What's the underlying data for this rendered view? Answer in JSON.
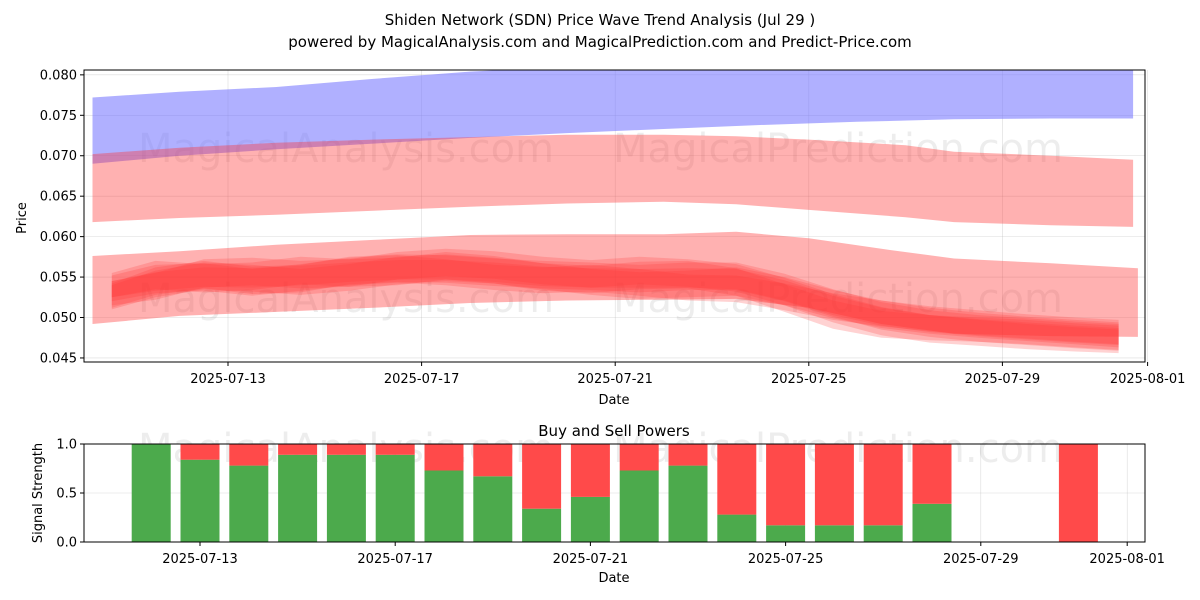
{
  "chart_data": [
    {
      "type": "area",
      "title": "Shiden Network (SDN) Price Wave Trend Analysis (Jul 29 )",
      "subtitle": "powered by MagicalAnalysis.com and MagicalPrediction.com and Predict-Price.com",
      "xlabel": "Date",
      "ylabel": "Price",
      "ylim": [
        0.0445,
        0.0806
      ],
      "y_ticks": [
        "0.045",
        "0.050",
        "0.055",
        "0.060",
        "0.065",
        "0.070",
        "0.075",
        "0.080"
      ],
      "x_ticks": [
        "2025-07-13",
        "2025-07-17",
        "2025-07-21",
        "2025-07-25",
        "2025-07-29",
        "2025-08-01"
      ],
      "watermarks": [
        "MagicalAnalysis.com",
        "MagicalPrediction.com"
      ],
      "colors": {
        "upper_band": "#7777ff",
        "bands": "#ff3333"
      },
      "series": [
        {
          "name": "upper-blue-band",
          "days": [
            10.2,
            12,
            14,
            16,
            18,
            20,
            22,
            24,
            26,
            28,
            30,
            31.7
          ],
          "low": [
            0.069,
            0.07,
            0.0708,
            0.0715,
            0.0722,
            0.0728,
            0.0733,
            0.0738,
            0.0742,
            0.0745,
            0.0746,
            0.0746
          ],
          "high": [
            0.0772,
            0.0779,
            0.0785,
            0.0795,
            0.0804,
            0.081,
            0.0812,
            0.0812,
            0.0811,
            0.081,
            0.0809,
            0.0809
          ]
        },
        {
          "name": "middle-red-band",
          "days": [
            10.2,
            12,
            14,
            16,
            18,
            20,
            22,
            23.5,
            25,
            27,
            28,
            30,
            31.7
          ],
          "low": [
            0.0618,
            0.0623,
            0.0627,
            0.0632,
            0.0637,
            0.0641,
            0.0643,
            0.064,
            0.0633,
            0.0624,
            0.0618,
            0.0614,
            0.0612
          ],
          "high": [
            0.0702,
            0.071,
            0.0716,
            0.072,
            0.0723,
            0.0726,
            0.0726,
            0.0724,
            0.072,
            0.0713,
            0.0705,
            0.07,
            0.0695
          ]
        },
        {
          "name": "lower-red-band",
          "days": [
            10.2,
            12,
            14,
            16,
            18,
            20,
            22,
            23.5,
            25,
            26.5,
            28,
            30,
            31.8
          ],
          "low": [
            0.0492,
            0.0502,
            0.0507,
            0.0512,
            0.0518,
            0.0521,
            0.0522,
            0.0523,
            0.0512,
            0.0492,
            0.048,
            0.0477,
            0.0476
          ],
          "high": [
            0.0576,
            0.0582,
            0.059,
            0.0596,
            0.0602,
            0.0603,
            0.0603,
            0.0606,
            0.0598,
            0.0585,
            0.0573,
            0.0567,
            0.0561
          ]
        },
        {
          "name": "wave-1",
          "days": [
            10.6,
            11.5,
            12.5,
            13.5,
            14.5,
            15.5,
            16.5,
            17.5,
            18.5,
            19.5,
            20.5,
            21.5,
            22.5,
            23.5,
            24.5,
            25.5,
            26.5,
            27.5,
            28.5,
            29.5,
            30.5,
            31.4
          ],
          "low": [
            0.051,
            0.0525,
            0.0535,
            0.0532,
            0.0528,
            0.0533,
            0.0541,
            0.0545,
            0.0542,
            0.0535,
            0.0528,
            0.0523,
            0.0525,
            0.0527,
            0.0515,
            0.0499,
            0.0487,
            0.048,
            0.0475,
            0.0471,
            0.0467,
            0.0463
          ],
          "high": [
            0.054,
            0.0558,
            0.0568,
            0.0565,
            0.056,
            0.0566,
            0.0575,
            0.0578,
            0.0574,
            0.0567,
            0.056,
            0.0556,
            0.0558,
            0.0562,
            0.055,
            0.0534,
            0.0521,
            0.0512,
            0.0506,
            0.0501,
            0.0497,
            0.0494
          ]
        },
        {
          "name": "wave-2",
          "days": [
            10.6,
            11.5,
            12.5,
            13.5,
            14.5,
            15.5,
            16.5,
            17.5,
            18.5,
            19.5,
            20.5,
            21.5,
            22.5,
            23.5,
            24.5,
            25.5,
            26.5,
            27.5,
            28.5,
            29.5,
            30.5,
            31.4
          ],
          "low": [
            0.052,
            0.053,
            0.0533,
            0.0527,
            0.0533,
            0.054,
            0.0543,
            0.054,
            0.0534,
            0.053,
            0.0532,
            0.0527,
            0.0521,
            0.0519,
            0.0509,
            0.0497,
            0.0489,
            0.0483,
            0.0478,
            0.0474,
            0.047,
            0.0467
          ],
          "high": [
            0.0552,
            0.0565,
            0.0567,
            0.056,
            0.0566,
            0.0574,
            0.0577,
            0.0572,
            0.0565,
            0.0562,
            0.0565,
            0.056,
            0.0553,
            0.0552,
            0.0542,
            0.053,
            0.0521,
            0.0514,
            0.0509,
            0.0504,
            0.05,
            0.0497
          ]
        },
        {
          "name": "wave-3",
          "days": [
            10.6,
            11.5,
            12.5,
            13.5,
            14.5,
            15.5,
            16.5,
            17.5,
            18.5,
            19.5,
            20.5,
            21.5,
            22.5,
            23.5,
            24.5,
            25.5,
            26.5,
            27.5,
            28.5,
            29.5,
            30.5,
            31.4
          ],
          "low": [
            0.0515,
            0.0522,
            0.0537,
            0.054,
            0.0536,
            0.0538,
            0.0547,
            0.0551,
            0.0548,
            0.0541,
            0.0537,
            0.0541,
            0.0538,
            0.0532,
            0.0515,
            0.0494,
            0.0478,
            0.0469,
            0.0465,
            0.0461,
            0.0458,
            0.0456
          ],
          "high": [
            0.0545,
            0.0555,
            0.0572,
            0.0574,
            0.057,
            0.0572,
            0.0581,
            0.0585,
            0.0582,
            0.0575,
            0.0571,
            0.0575,
            0.0572,
            0.0566,
            0.0549,
            0.0529,
            0.0513,
            0.0503,
            0.0498,
            0.0494,
            0.049,
            0.0487
          ]
        },
        {
          "name": "wave-4",
          "days": [
            10.6,
            11.5,
            12.5,
            13.5,
            14.5,
            15.5,
            16.5,
            17.5,
            18.5,
            19.5,
            20.5,
            21.5,
            22.5,
            23.5,
            24.5,
            25.5,
            26.5,
            27.5,
            28.5,
            29.5,
            30.5,
            31.4
          ],
          "low": [
            0.0525,
            0.0535,
            0.0531,
            0.0534,
            0.0541,
            0.0538,
            0.054,
            0.0547,
            0.0542,
            0.0533,
            0.053,
            0.0535,
            0.0536,
            0.0527,
            0.0507,
            0.0486,
            0.0475,
            0.0472,
            0.047,
            0.0467,
            0.0463,
            0.046
          ],
          "high": [
            0.0555,
            0.057,
            0.0566,
            0.0568,
            0.0575,
            0.0572,
            0.0574,
            0.0581,
            0.0576,
            0.0567,
            0.0564,
            0.0569,
            0.057,
            0.0561,
            0.0541,
            0.0521,
            0.0508,
            0.0503,
            0.05,
            0.0497,
            0.0493,
            0.049
          ]
        },
        {
          "name": "wave-5",
          "days": [
            10.6,
            11.5,
            12.5,
            13.5,
            14.5,
            15.5,
            16.5,
            17.5,
            18.5,
            19.5,
            20.5,
            21.5,
            22.5,
            23.5,
            24.5,
            25.5,
            26.5,
            27.5,
            28.5,
            29.5,
            30.5,
            31.4
          ],
          "low": [
            0.0512,
            0.0528,
            0.0536,
            0.0529,
            0.0531,
            0.0541,
            0.0544,
            0.0543,
            0.0539,
            0.0536,
            0.0534,
            0.0531,
            0.0534,
            0.0534,
            0.052,
            0.0501,
            0.0485,
            0.0476,
            0.047,
            0.0466,
            0.0462,
            0.0459
          ],
          "high": [
            0.0542,
            0.0562,
            0.057,
            0.0563,
            0.0565,
            0.0575,
            0.0578,
            0.0577,
            0.0573,
            0.057,
            0.0568,
            0.0565,
            0.0568,
            0.0568,
            0.0554,
            0.0535,
            0.0519,
            0.0509,
            0.0503,
            0.0499,
            0.0495,
            0.0492
          ]
        },
        {
          "name": "central-wave",
          "days": [
            10.6,
            11.5,
            12.5,
            13.5,
            14.5,
            15.5,
            16.5,
            17.5,
            18.5,
            19.5,
            20.5,
            21.5,
            22.5,
            23.5,
            24.5,
            25.5,
            26.5,
            27.5,
            28.5,
            29.5,
            30.5,
            31.4
          ],
          "low": [
            0.0525,
            0.0533,
            0.0538,
            0.0537,
            0.054,
            0.0544,
            0.0547,
            0.0547,
            0.0544,
            0.0539,
            0.0537,
            0.0537,
            0.0537,
            0.0535,
            0.0521,
            0.0503,
            0.049,
            0.0482,
            0.0477,
            0.0473,
            0.0469,
            0.0466
          ],
          "high": [
            0.0545,
            0.0556,
            0.0562,
            0.0561,
            0.0564,
            0.0568,
            0.0571,
            0.0571,
            0.0568,
            0.0563,
            0.0561,
            0.056,
            0.0561,
            0.056,
            0.0546,
            0.0527,
            0.0512,
            0.0503,
            0.0497,
            0.0492,
            0.0488,
            0.0485
          ]
        }
      ]
    },
    {
      "type": "bar",
      "title": "Buy and Sell Powers",
      "xlabel": "Date",
      "ylabel": "Signal Strength",
      "ylim": [
        0,
        1
      ],
      "y_ticks": [
        "0.0",
        "0.5",
        "1.0"
      ],
      "x_ticks": [
        "2025-07-13",
        "2025-07-17",
        "2025-07-21",
        "2025-07-25",
        "2025-07-29",
        "2025-08-01"
      ],
      "watermarks": [
        "MagicalAnalysis.com",
        "MagicalPrediction.com"
      ],
      "colors": {
        "buy": "#4caa4c",
        "sell": "#ff4a4a"
      },
      "days": [
        12,
        13,
        14,
        15,
        16,
        17,
        18,
        19,
        20,
        21,
        22,
        23,
        24,
        25,
        26,
        27,
        28,
        31
      ],
      "series": [
        {
          "name": "Buy",
          "values": [
            1.0,
            0.84,
            0.78,
            0.89,
            0.89,
            0.89,
            0.73,
            0.67,
            0.34,
            0.46,
            0.73,
            0.78,
            0.28,
            0.17,
            0.17,
            0.17,
            0.39,
            0.0
          ]
        },
        {
          "name": "Sell",
          "values": [
            0.0,
            0.16,
            0.22,
            0.11,
            0.11,
            0.11,
            0.27,
            0.33,
            0.66,
            0.54,
            0.27,
            0.22,
            0.72,
            0.83,
            0.83,
            0.83,
            0.61,
            1.0
          ]
        }
      ]
    }
  ]
}
